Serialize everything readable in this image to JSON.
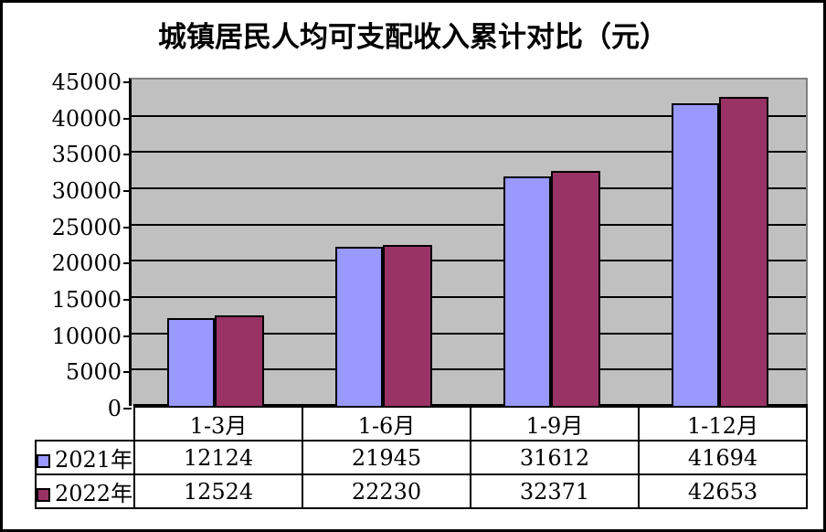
{
  "frame": {
    "background_color": "#FFFFFF",
    "border_color": "#000000"
  },
  "chart_data": {
    "type": "bar",
    "title": "城镇居民人均可支配收入累计对比（元）",
    "categories": [
      "1-3月",
      "1-6月",
      "1-9月",
      "1-12月"
    ],
    "series": [
      {
        "name": "2021年",
        "color": "#9999FF",
        "values": [
          12124,
          21945,
          31612,
          41694
        ]
      },
      {
        "name": "2022年",
        "color": "#993366",
        "values": [
          12524,
          22230,
          32371,
          42653
        ]
      }
    ],
    "xlabel": "",
    "ylabel": "",
    "ylim": [
      0,
      45000
    ],
    "ytick_step": 5000,
    "ytick_labels": [
      "0",
      "5000",
      "10000",
      "15000",
      "20000",
      "25000",
      "30000",
      "35000",
      "40000",
      "45000"
    ],
    "grid": "horizontal",
    "gridline_color": "#000000",
    "plot_bg_color": "#C0C0C0",
    "plot_border_color": "#808080",
    "axis_color": "#000000",
    "legend_position": "data-table-left",
    "show_data_table": true
  }
}
